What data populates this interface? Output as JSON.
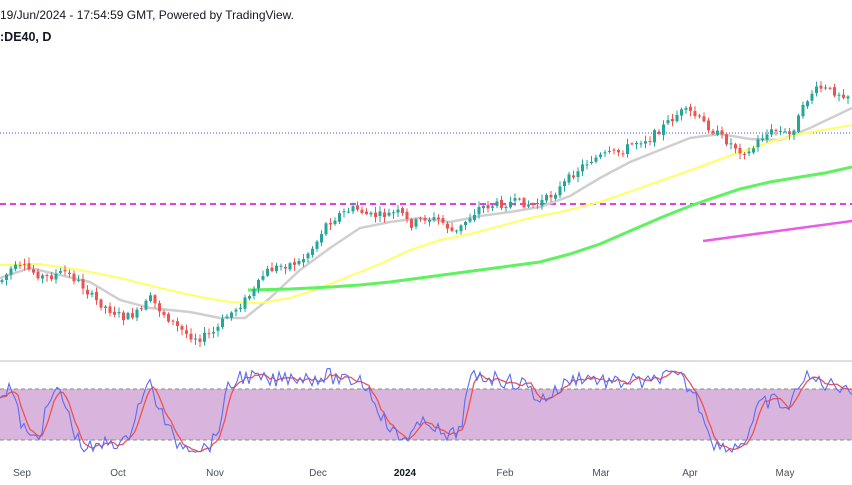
{
  "header": {
    "info_line": "19/Jun/2024 - 17:54:59 GMT, Powered by TradingView.",
    "symbol_line": ":DE40, D"
  },
  "colors": {
    "background": "#ffffff",
    "candle_up": "#26a69a",
    "candle_down": "#ef5350",
    "ma_fast": "#cfcfcf",
    "ma_mid": "#ffff66",
    "ma_slow": "#5ef25e",
    "magenta_line": "#e85ce8",
    "blue_dotted": "#3a5fd9",
    "rsi_band": "#d9b5de",
    "stoch_k": "#5b6bf0",
    "stoch_d": "#f05050"
  },
  "chart_data": [
    {
      "type": "candlestick",
      "symbol": ":DE40",
      "interval": "D",
      "x_tick_labels": [
        "Sep",
        "Oct",
        "Nov",
        "Dec",
        "2024",
        "Feb",
        "Mar",
        "Apr",
        "May"
      ],
      "series": [
        {
          "kind": "candles",
          "points": 190
        },
        {
          "kind": "moving_average",
          "color": "#cfcfcf"
        },
        {
          "kind": "moving_average",
          "color": "#ffff66"
        },
        {
          "kind": "moving_average",
          "color": "#5ef25e"
        },
        {
          "kind": "trend_line",
          "color": "#e85ce8"
        }
      ],
      "horizontal_lines": [
        {
          "style": "dotted",
          "color": "#3a5fd9"
        },
        {
          "style": "dashed",
          "color": "#e040e0"
        }
      ]
    },
    {
      "type": "line",
      "indicator": "stochastic",
      "series": [
        {
          "color": "#5b6bf0"
        },
        {
          "color": "#f05050"
        }
      ],
      "bands": [
        80,
        20
      ],
      "ylim": [
        0,
        100
      ]
    }
  ]
}
